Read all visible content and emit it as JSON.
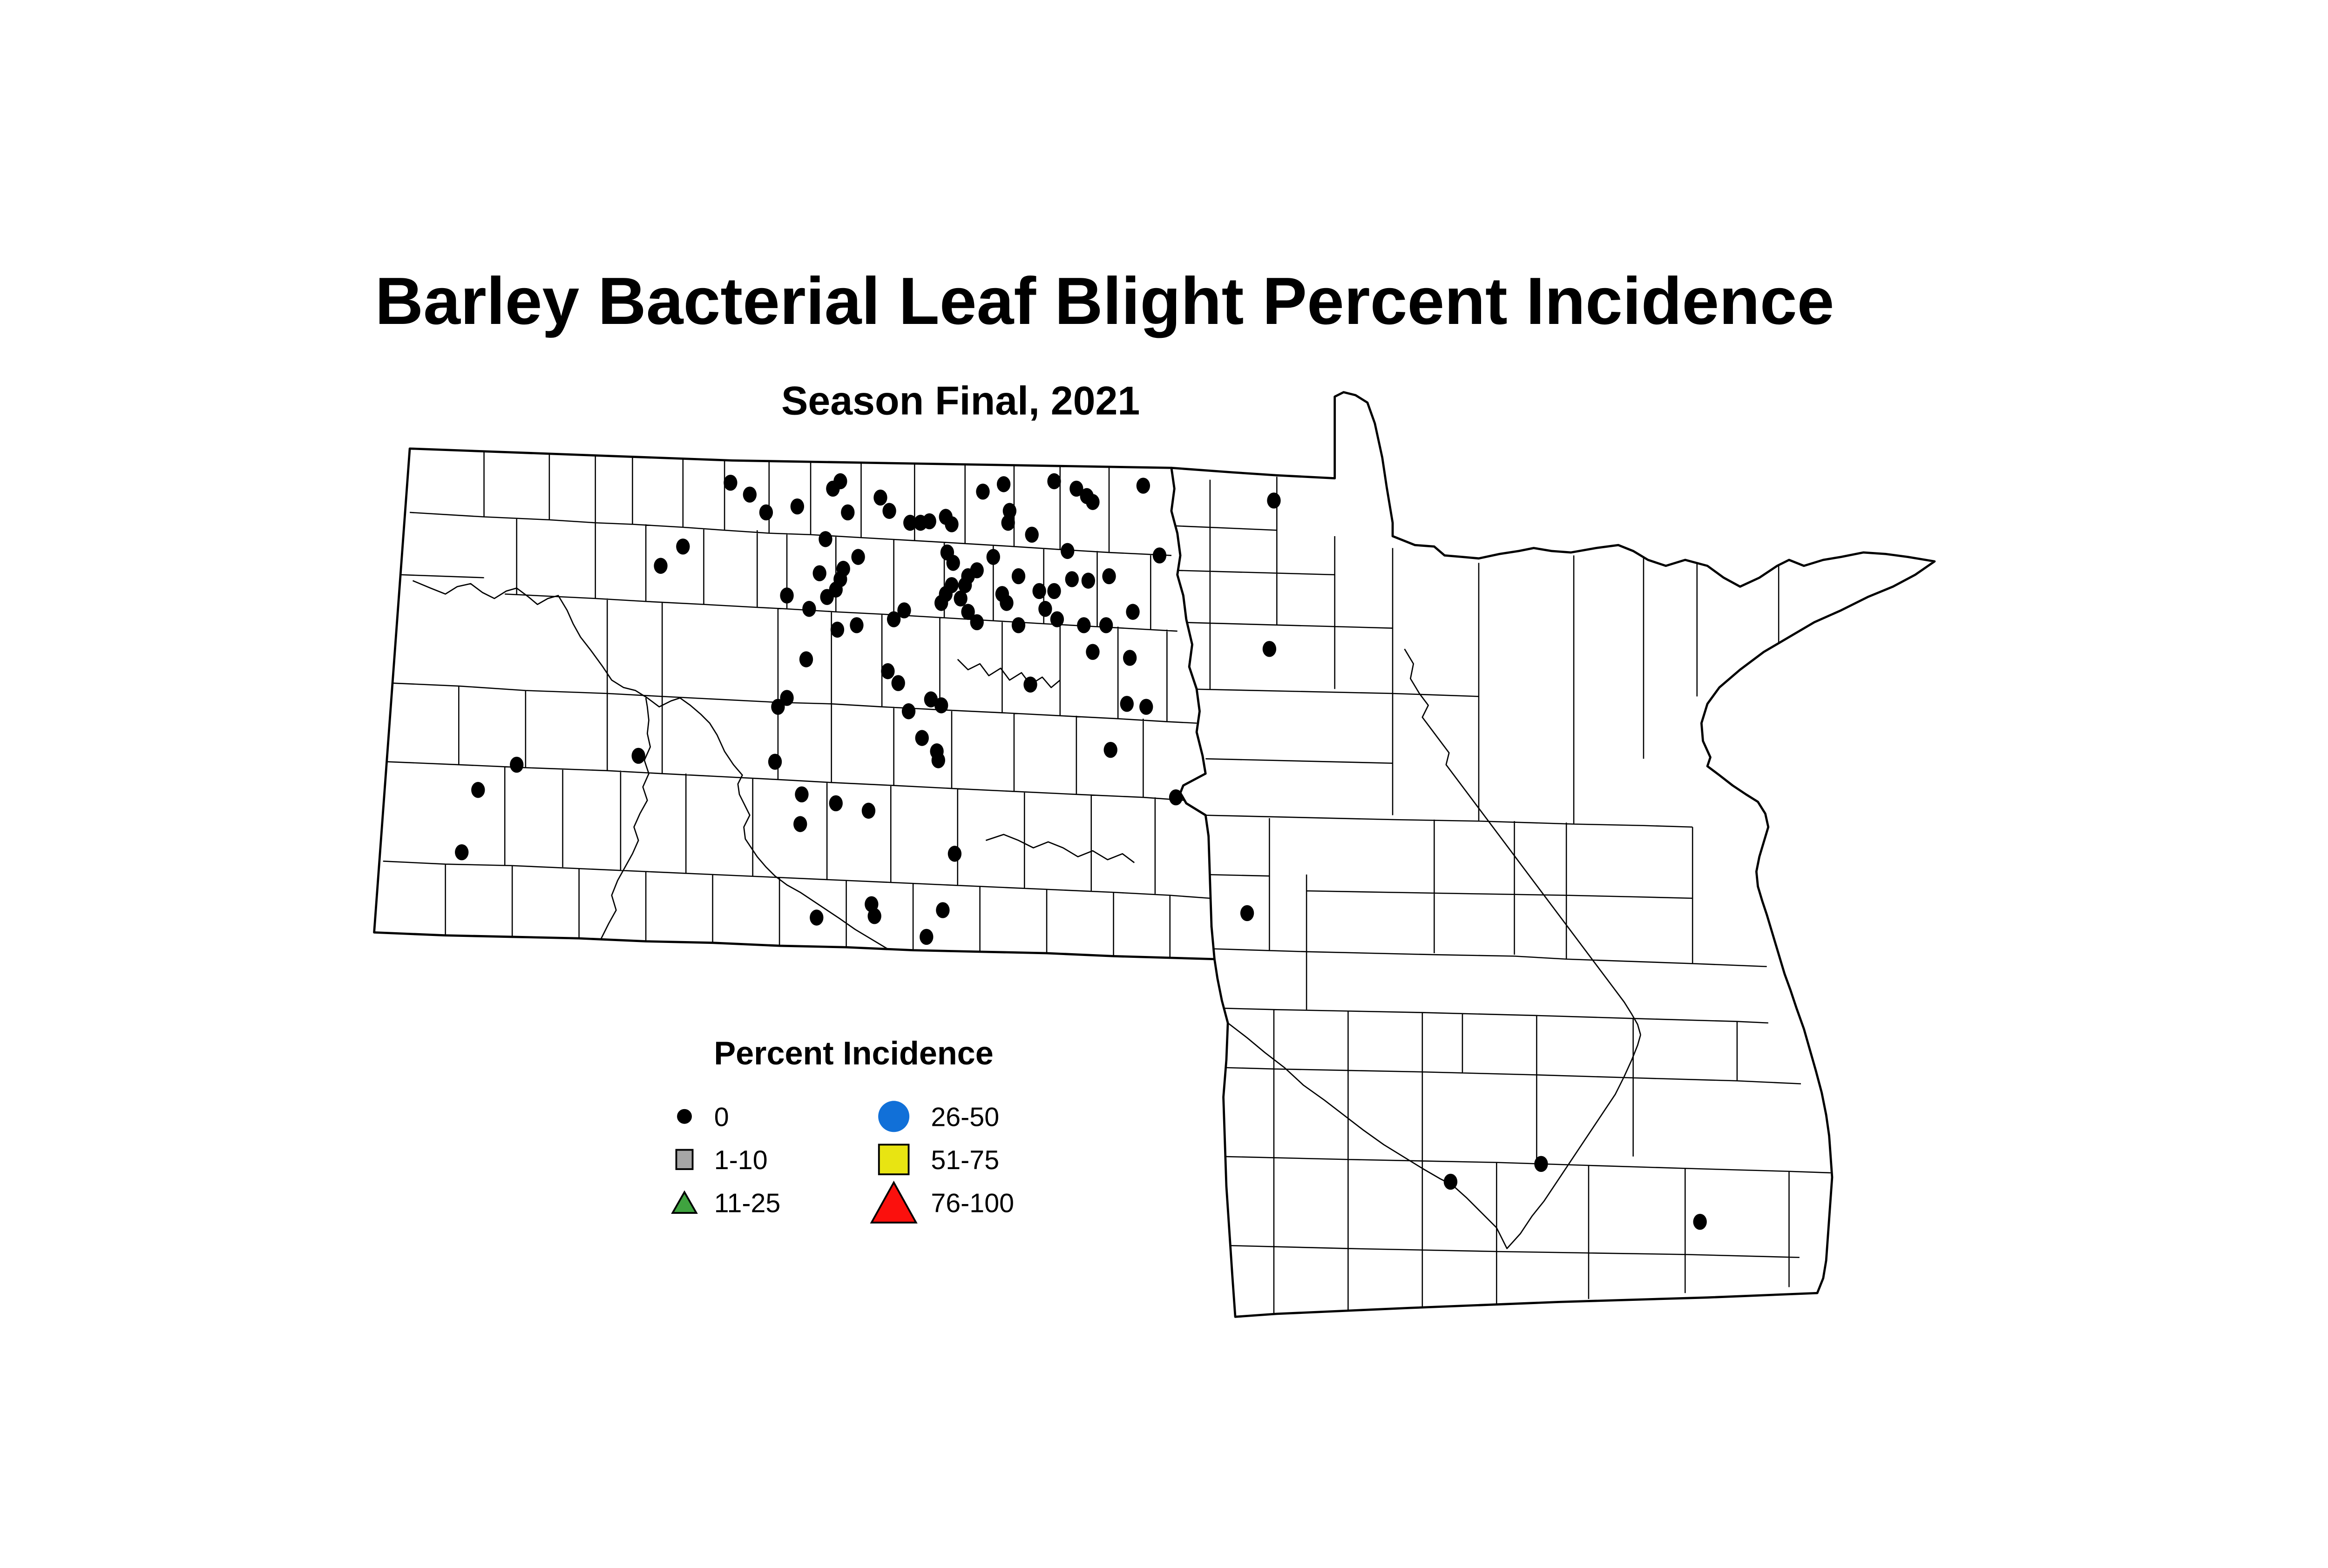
{
  "title": "Barley Bacterial Leaf Blight Percent Incidence",
  "subtitle": "Season Final, 2021",
  "legend": {
    "title": "Percent Incidence",
    "items": [
      {
        "label": "0",
        "symbol": "dot",
        "color": "#000000"
      },
      {
        "label": "1-10",
        "symbol": "square",
        "color": "#a6a6a6"
      },
      {
        "label": "11-25",
        "symbol": "triangle",
        "color": "#3fa33f"
      },
      {
        "label": "26-50",
        "symbol": "circle",
        "color": "#1170d8"
      },
      {
        "label": "51-75",
        "symbol": "square-large",
        "color": "#e8e412"
      },
      {
        "label": "76-100",
        "symbol": "triangle-large",
        "color": "#fb100d"
      }
    ]
  },
  "map": {
    "marker_color": "#000000",
    "marker_category": "0",
    "markers": [
      [
        492,
        206
      ],
      [
        505,
        214
      ],
      [
        516,
        226
      ],
      [
        537,
        222
      ],
      [
        460,
        249
      ],
      [
        445,
        262
      ],
      [
        530,
        282
      ],
      [
        545,
        291
      ],
      [
        561,
        210
      ],
      [
        566,
        205
      ],
      [
        571,
        226
      ],
      [
        593,
        216
      ],
      [
        599,
        225
      ],
      [
        556,
        244
      ],
      [
        613,
        233
      ],
      [
        620,
        233
      ],
      [
        626,
        232
      ],
      [
        637,
        229
      ],
      [
        641,
        234
      ],
      [
        662,
        212
      ],
      [
        676,
        207
      ],
      [
        680,
        225
      ],
      [
        679,
        233
      ],
      [
        695,
        241
      ],
      [
        710,
        205
      ],
      [
        725,
        210
      ],
      [
        732,
        215
      ],
      [
        736,
        219
      ],
      [
        770,
        208
      ],
      [
        638,
        253
      ],
      [
        642,
        260
      ],
      [
        669,
        256
      ],
      [
        658,
        265
      ],
      [
        578,
        256
      ],
      [
        552,
        267
      ],
      [
        568,
        264
      ],
      [
        566,
        271
      ],
      [
        563,
        278
      ],
      [
        557,
        283
      ],
      [
        719,
        252
      ],
      [
        686,
        269
      ],
      [
        722,
        271
      ],
      [
        733,
        272
      ],
      [
        747,
        269
      ],
      [
        781,
        255
      ],
      [
        652,
        269
      ],
      [
        650,
        275
      ],
      [
        641,
        275
      ],
      [
        637,
        281
      ],
      [
        634,
        287
      ],
      [
        647,
        284
      ],
      [
        652,
        293
      ],
      [
        658,
        300
      ],
      [
        675,
        281
      ],
      [
        678,
        287
      ],
      [
        686,
        302
      ],
      [
        609,
        292
      ],
      [
        602,
        298
      ],
      [
        577,
        302
      ],
      [
        564,
        305
      ],
      [
        700,
        279
      ],
      [
        710,
        279
      ],
      [
        704,
        291
      ],
      [
        712,
        298
      ],
      [
        730,
        302
      ],
      [
        745,
        302
      ],
      [
        763,
        293
      ],
      [
        543,
        325
      ],
      [
        598,
        333
      ],
      [
        605,
        341
      ],
      [
        694,
        342
      ],
      [
        736,
        320
      ],
      [
        761,
        324
      ],
      [
        524,
        357
      ],
      [
        530,
        351
      ],
      [
        612,
        360
      ],
      [
        627,
        352
      ],
      [
        634,
        356
      ],
      [
        759,
        355
      ],
      [
        772,
        357
      ],
      [
        621,
        378
      ],
      [
        631,
        387
      ],
      [
        632,
        393
      ],
      [
        748,
        386
      ],
      [
        348,
        396
      ],
      [
        430,
        390
      ],
      [
        522,
        394
      ],
      [
        322,
        413
      ],
      [
        540,
        416
      ],
      [
        539,
        436
      ],
      [
        563,
        422
      ],
      [
        585,
        427
      ],
      [
        643,
        456
      ],
      [
        792,
        418
      ],
      [
        311,
        455
      ],
      [
        550,
        499
      ],
      [
        587,
        490
      ],
      [
        589,
        498
      ],
      [
        635,
        494
      ],
      [
        624,
        512
      ],
      [
        858,
        218
      ],
      [
        855,
        318
      ],
      [
        840,
        496
      ],
      [
        977,
        677
      ],
      [
        1038,
        665
      ],
      [
        1145,
        704
      ]
    ]
  }
}
